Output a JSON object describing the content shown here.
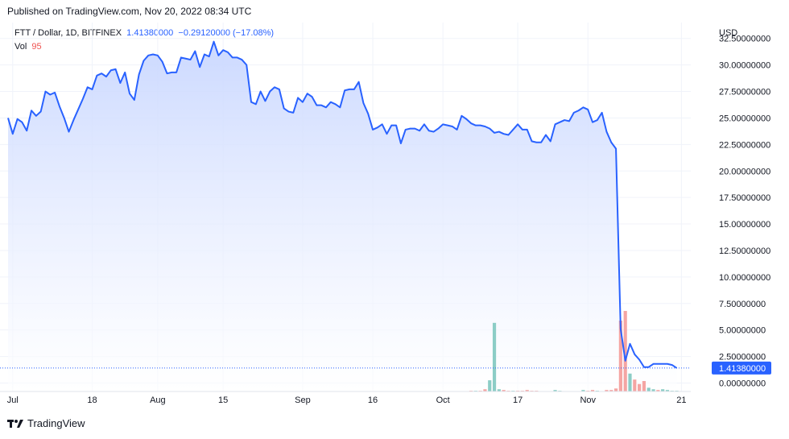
{
  "header": {
    "published": "Published on TradingView.com, Nov 20, 2022 08:34 UTC"
  },
  "legend": {
    "symbol": "FTT / Dollar, 1D, BITFINEX",
    "last": "1.41380000",
    "change": "−0.29120000 (−17.08%)",
    "vol_label": "Vol",
    "vol_value": "95"
  },
  "footer": {
    "brand": "TradingView"
  },
  "colors": {
    "line": "#2962ff",
    "area_top": "#c9d7ff",
    "area_bottom": "#ffffff",
    "vol_up": "#8ccdc6",
    "vol_down": "#f5a5a3",
    "badge": "#2962ff",
    "grid": "#f0f3fa"
  },
  "chart_data": {
    "type": "area",
    "title": "FTT / Dollar, 1D, BITFINEX",
    "ylabel": "USD",
    "currency": "USD",
    "ylim": [
      -0.8,
      34
    ],
    "y_ticks": [
      {
        "value": 0,
        "label": "0.00000000"
      },
      {
        "value": 2.5,
        "label": "2.50000000"
      },
      {
        "value": 5,
        "label": "5.00000000"
      },
      {
        "value": 7.5,
        "label": "7.50000000"
      },
      {
        "value": 10,
        "label": "10.00000000"
      },
      {
        "value": 12.5,
        "label": "12.50000000"
      },
      {
        "value": 15,
        "label": "15.00000000"
      },
      {
        "value": 17.5,
        "label": "17.50000000"
      },
      {
        "value": 20,
        "label": "20.00000000"
      },
      {
        "value": 22.5,
        "label": "22.50000000"
      },
      {
        "value": 25,
        "label": "25.00000000"
      },
      {
        "value": 27.5,
        "label": "27.50000000"
      },
      {
        "value": 30,
        "label": "30.00000000"
      },
      {
        "value": 32.5,
        "label": "32.50000000"
      }
    ],
    "x_ticks": [
      {
        "date": "2022-07-01",
        "label": "Jul"
      },
      {
        "date": "2022-07-18",
        "label": "18"
      },
      {
        "date": "2022-08-01",
        "label": "Aug"
      },
      {
        "date": "2022-08-15",
        "label": "15"
      },
      {
        "date": "2022-09-01",
        "label": "Sep"
      },
      {
        "date": "2022-09-16",
        "label": "16"
      },
      {
        "date": "2022-10-01",
        "label": "Oct"
      },
      {
        "date": "2022-10-17",
        "label": "17"
      },
      {
        "date": "2022-11-01",
        "label": "Nov"
      },
      {
        "date": "2022-11-21",
        "label": "21"
      }
    ],
    "x_range": [
      "2022-06-30",
      "2022-11-23"
    ],
    "last_price": {
      "value": 1.4138,
      "label": "1.41380000"
    },
    "series": [
      {
        "values": [
          [
            "2022-06-30",
            25.0
          ],
          [
            "2022-07-01",
            23.5
          ],
          [
            "2022-07-02",
            24.9
          ],
          [
            "2022-07-03",
            24.6
          ],
          [
            "2022-07-04",
            23.8
          ],
          [
            "2022-07-05",
            25.7
          ],
          [
            "2022-07-06",
            25.2
          ],
          [
            "2022-07-07",
            25.6
          ],
          [
            "2022-07-08",
            27.5
          ],
          [
            "2022-07-09",
            27.2
          ],
          [
            "2022-07-10",
            27.4
          ],
          [
            "2022-07-11",
            26.1
          ],
          [
            "2022-07-12",
            25.0
          ],
          [
            "2022-07-13",
            23.7
          ],
          [
            "2022-07-14",
            24.8
          ],
          [
            "2022-07-15",
            25.8
          ],
          [
            "2022-07-16",
            26.8
          ],
          [
            "2022-07-17",
            27.9
          ],
          [
            "2022-07-18",
            27.7
          ],
          [
            "2022-07-19",
            29.0
          ],
          [
            "2022-07-20",
            29.2
          ],
          [
            "2022-07-21",
            28.9
          ],
          [
            "2022-07-22",
            29.5
          ],
          [
            "2022-07-23",
            29.6
          ],
          [
            "2022-07-24",
            28.3
          ],
          [
            "2022-07-25",
            29.3
          ],
          [
            "2022-07-26",
            27.3
          ],
          [
            "2022-07-27",
            26.7
          ],
          [
            "2022-07-28",
            29.1
          ],
          [
            "2022-07-29",
            30.4
          ],
          [
            "2022-07-30",
            30.9
          ],
          [
            "2022-07-31",
            31.0
          ],
          [
            "2022-08-01",
            30.9
          ],
          [
            "2022-08-02",
            30.3
          ],
          [
            "2022-08-03",
            29.2
          ],
          [
            "2022-08-04",
            29.3
          ],
          [
            "2022-08-05",
            29.3
          ],
          [
            "2022-08-06",
            30.7
          ],
          [
            "2022-08-07",
            30.6
          ],
          [
            "2022-08-08",
            30.5
          ],
          [
            "2022-08-09",
            31.3
          ],
          [
            "2022-08-10",
            29.8
          ],
          [
            "2022-08-11",
            31.0
          ],
          [
            "2022-08-12",
            30.8
          ],
          [
            "2022-08-13",
            32.2
          ],
          [
            "2022-08-14",
            30.9
          ],
          [
            "2022-08-15",
            31.4
          ],
          [
            "2022-08-16",
            31.2
          ],
          [
            "2022-08-17",
            30.7
          ],
          [
            "2022-08-18",
            30.7
          ],
          [
            "2022-08-19",
            30.5
          ],
          [
            "2022-08-20",
            30.0
          ],
          [
            "2022-08-21",
            26.5
          ],
          [
            "2022-08-22",
            26.3
          ],
          [
            "2022-08-23",
            27.5
          ],
          [
            "2022-08-24",
            26.6
          ],
          [
            "2022-08-25",
            27.5
          ],
          [
            "2022-08-26",
            27.9
          ],
          [
            "2022-08-27",
            27.7
          ],
          [
            "2022-08-28",
            25.9
          ],
          [
            "2022-08-29",
            25.6
          ],
          [
            "2022-08-30",
            25.5
          ],
          [
            "2022-08-31",
            26.9
          ],
          [
            "2022-09-01",
            26.5
          ],
          [
            "2022-09-02",
            27.3
          ],
          [
            "2022-09-03",
            27.0
          ],
          [
            "2022-09-04",
            26.2
          ],
          [
            "2022-09-05",
            26.2
          ],
          [
            "2022-09-06",
            26.0
          ],
          [
            "2022-09-07",
            26.5
          ],
          [
            "2022-09-08",
            26.3
          ],
          [
            "2022-09-09",
            26.0
          ],
          [
            "2022-09-10",
            27.6
          ],
          [
            "2022-09-11",
            27.7
          ],
          [
            "2022-09-12",
            27.7
          ],
          [
            "2022-09-13",
            28.4
          ],
          [
            "2022-09-14",
            26.4
          ],
          [
            "2022-09-15",
            25.4
          ],
          [
            "2022-09-16",
            23.9
          ],
          [
            "2022-09-17",
            24.1
          ],
          [
            "2022-09-18",
            24.4
          ],
          [
            "2022-09-19",
            23.5
          ],
          [
            "2022-09-20",
            24.3
          ],
          [
            "2022-09-21",
            24.3
          ],
          [
            "2022-09-22",
            22.6
          ],
          [
            "2022-09-23",
            23.9
          ],
          [
            "2022-09-24",
            24.0
          ],
          [
            "2022-09-25",
            24.0
          ],
          [
            "2022-09-26",
            23.8
          ],
          [
            "2022-09-27",
            24.4
          ],
          [
            "2022-09-28",
            23.8
          ],
          [
            "2022-09-29",
            23.7
          ],
          [
            "2022-09-30",
            24.0
          ],
          [
            "2022-10-01",
            24.4
          ],
          [
            "2022-10-02",
            24.3
          ],
          [
            "2022-10-03",
            24.2
          ],
          [
            "2022-10-04",
            23.9
          ],
          [
            "2022-10-05",
            25.2
          ],
          [
            "2022-10-06",
            24.9
          ],
          [
            "2022-10-07",
            24.5
          ],
          [
            "2022-10-08",
            24.3
          ],
          [
            "2022-10-09",
            24.3
          ],
          [
            "2022-10-10",
            24.2
          ],
          [
            "2022-10-11",
            24.0
          ],
          [
            "2022-10-12",
            23.6
          ],
          [
            "2022-10-13",
            23.7
          ],
          [
            "2022-10-14",
            23.5
          ],
          [
            "2022-10-15",
            23.4
          ],
          [
            "2022-10-16",
            23.9
          ],
          [
            "2022-10-17",
            24.4
          ],
          [
            "2022-10-18",
            23.9
          ],
          [
            "2022-10-19",
            23.9
          ],
          [
            "2022-10-20",
            22.8
          ],
          [
            "2022-10-21",
            22.7
          ],
          [
            "2022-10-22",
            22.7
          ],
          [
            "2022-10-23",
            23.4
          ],
          [
            "2022-10-24",
            22.8
          ],
          [
            "2022-10-25",
            24.4
          ],
          [
            "2022-10-26",
            24.6
          ],
          [
            "2022-10-27",
            24.8
          ],
          [
            "2022-10-28",
            24.7
          ],
          [
            "2022-10-29",
            25.5
          ],
          [
            "2022-10-30",
            25.7
          ],
          [
            "2022-10-31",
            26.0
          ],
          [
            "2022-11-01",
            25.8
          ],
          [
            "2022-11-02",
            24.6
          ],
          [
            "2022-11-03",
            24.8
          ],
          [
            "2022-11-04",
            25.5
          ],
          [
            "2022-11-05",
            23.7
          ],
          [
            "2022-11-06",
            22.7
          ],
          [
            "2022-11-07",
            22.1
          ],
          [
            "2022-11-08",
            5.1
          ],
          [
            "2022-11-09",
            2.1
          ],
          [
            "2022-11-10",
            3.7
          ],
          [
            "2022-11-11",
            2.7
          ],
          [
            "2022-11-12",
            2.2
          ],
          [
            "2022-11-13",
            1.5
          ],
          [
            "2022-11-14",
            1.5
          ],
          [
            "2022-11-15",
            1.8
          ],
          [
            "2022-11-16",
            1.8
          ],
          [
            "2022-11-17",
            1.8
          ],
          [
            "2022-11-18",
            1.8
          ],
          [
            "2022-11-19",
            1.7
          ],
          [
            "2022-11-20",
            1.41
          ]
        ]
      }
    ],
    "volume": {
      "label": "Vol",
      "unit": "relative",
      "bars": [
        [
          "2022-10-07",
          1,
          "down"
        ],
        [
          "2022-10-08",
          1,
          "up"
        ],
        [
          "2022-10-09",
          1,
          "down"
        ],
        [
          "2022-10-10",
          3,
          "down"
        ],
        [
          "2022-10-11",
          15,
          "up"
        ],
        [
          "2022-10-12",
          92,
          "up"
        ],
        [
          "2022-10-13",
          3,
          "up"
        ],
        [
          "2022-10-14",
          2,
          "down"
        ],
        [
          "2022-10-15",
          1,
          "down"
        ],
        [
          "2022-10-16",
          1,
          "up"
        ],
        [
          "2022-10-17",
          1,
          "down"
        ],
        [
          "2022-10-18",
          1,
          "down"
        ],
        [
          "2022-10-19",
          2,
          "down"
        ],
        [
          "2022-10-20",
          1,
          "down"
        ],
        [
          "2022-10-21",
          1,
          "down"
        ],
        [
          "2022-10-25",
          2,
          "up"
        ],
        [
          "2022-10-26",
          1,
          "up"
        ],
        [
          "2022-10-31",
          2,
          "up"
        ],
        [
          "2022-11-01",
          1,
          "down"
        ],
        [
          "2022-11-02",
          2,
          "down"
        ],
        [
          "2022-11-03",
          1,
          "up"
        ],
        [
          "2022-11-05",
          2,
          "down"
        ],
        [
          "2022-11-06",
          2,
          "down"
        ],
        [
          "2022-11-07",
          4,
          "down"
        ],
        [
          "2022-11-08",
          95,
          "down"
        ],
        [
          "2022-11-09",
          108,
          "down"
        ],
        [
          "2022-11-10",
          24,
          "up"
        ],
        [
          "2022-11-11",
          16,
          "down"
        ],
        [
          "2022-11-12",
          10,
          "down"
        ],
        [
          "2022-11-13",
          14,
          "down"
        ],
        [
          "2022-11-14",
          5,
          "up"
        ],
        [
          "2022-11-15",
          3,
          "up"
        ],
        [
          "2022-11-16",
          2,
          "down"
        ],
        [
          "2022-11-17",
          3,
          "up"
        ],
        [
          "2022-11-18",
          2,
          "up"
        ],
        [
          "2022-11-19",
          1,
          "up"
        ],
        [
          "2022-11-20",
          1,
          "up"
        ]
      ]
    },
    "legend_position": "top-left",
    "grid": true,
    "price_scale": "right"
  }
}
